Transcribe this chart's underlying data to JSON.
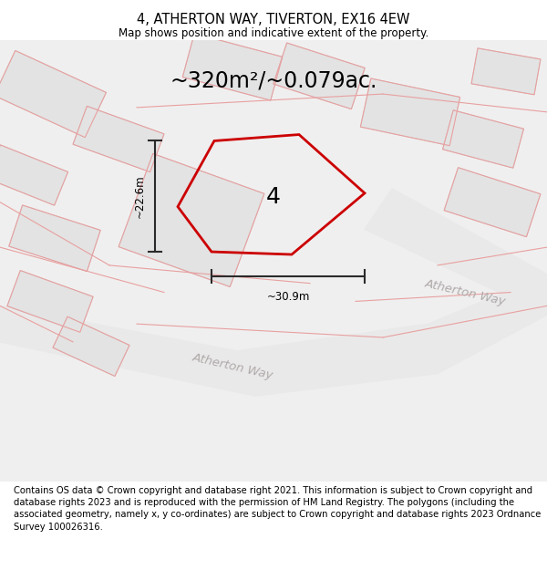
{
  "title": "4, ATHERTON WAY, TIVERTON, EX16 4EW",
  "subtitle": "Map shows position and indicative extent of the property.",
  "area_label": "~320m²/~0.079ac.",
  "plot_number": "4",
  "dim_width": "~30.9m",
  "dim_height": "~22.6m",
  "road_label_lower": "Atherton Way",
  "road_label_upper": "Atherton Way",
  "footer": "Contains OS data © Crown copyright and database right 2021. This information is subject to Crown copyright and database rights 2023 and is reproduced with the permission of HM Land Registry. The polygons (including the associated geometry, namely x, y co-ordinates) are subject to Crown copyright and database rights 2023 Ordnance Survey 100026316.",
  "bg_color": "#f7f6f6",
  "map_bg": "#f0efef",
  "building_fill": "#e3e3e3",
  "building_edge": "#d0d0d0",
  "road_fill": "#eae9e9",
  "pink_line": "#e8a0a0",
  "red_line_color": "#cc0000",
  "dim_line_color": "#2a2a2a",
  "white": "#ffffff",
  "title_fontsize": 10.5,
  "subtitle_fontsize": 8.5,
  "area_fontsize": 17,
  "plot_num_fontsize": 18,
  "road_label_fontsize": 9.5,
  "footer_fontsize": 7.2,
  "dim_fontsize": 8.5
}
